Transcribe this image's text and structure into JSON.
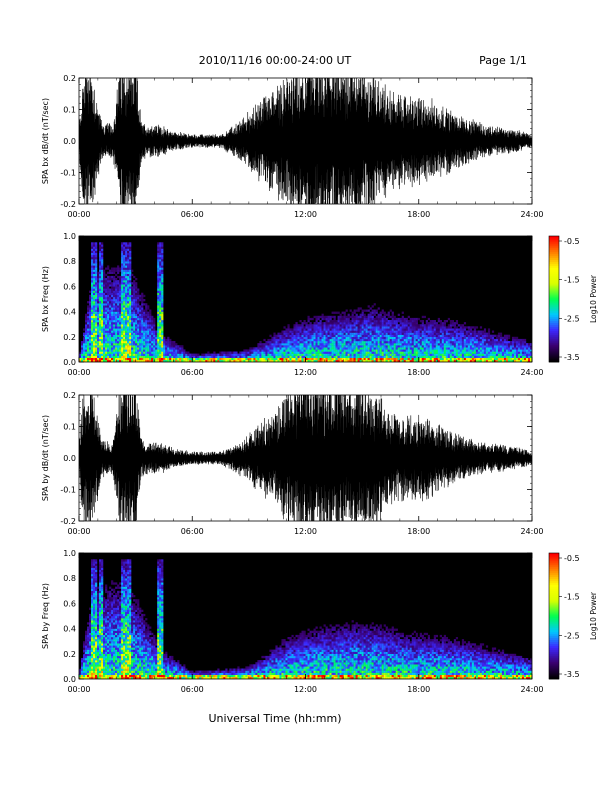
{
  "header": {
    "title": "2010/11/16  00:00-24:00 UT",
    "page": "Page 1/1"
  },
  "xaxis": {
    "label": "Universal Time (hh:mm)",
    "ticks": [
      "00:00",
      "06:00",
      "12:00",
      "18:00",
      "24:00"
    ],
    "range_hours": [
      0,
      24
    ]
  },
  "colorbar": {
    "label": "Log10 Power",
    "ticks": [
      "-0.5",
      "-1.5",
      "-2.5",
      "-3.5"
    ],
    "range": [
      -3.5,
      -0.5
    ],
    "colors": [
      "#000000",
      "#3a0070",
      "#3c28ff",
      "#00c8ff",
      "#00ff50",
      "#d8ff00",
      "#ffff00",
      "#ff8000",
      "#ff0000"
    ]
  },
  "chart_data": [
    {
      "type": "line",
      "panel": "waveform",
      "ylabel": "SPA bx dB/dt (nT/sec)",
      "ylim": [
        -0.2,
        0.2
      ],
      "yticks": [
        "0.2",
        "0.1",
        "0.0",
        "-0.1",
        "-0.2"
      ],
      "xlim": [
        0,
        24
      ],
      "envelope": {
        "hours": [
          0,
          0.3,
          0.6,
          1.2,
          1.8,
          2.2,
          3.0,
          3.3,
          3.6,
          4.2,
          5.0,
          6.0,
          7.5,
          8.5,
          9.5,
          10.5,
          11.5,
          12.5,
          13.5,
          14.5,
          15.5,
          16.5,
          17.5,
          18.5,
          19.5,
          20.5,
          21.5,
          22.5,
          23.5,
          24
        ],
        "amplitude": [
          0.05,
          0.25,
          0.25,
          0.06,
          0.05,
          0.25,
          0.25,
          0.06,
          0.05,
          0.05,
          0.03,
          0.02,
          0.02,
          0.06,
          0.12,
          0.18,
          0.22,
          0.25,
          0.25,
          0.25,
          0.22,
          0.15,
          0.14,
          0.13,
          0.1,
          0.07,
          0.05,
          0.04,
          0.03,
          0.02
        ]
      },
      "color": "#000000"
    },
    {
      "type": "heatmap",
      "panel": "spectrogram",
      "ylabel": "SPA bx Freq (Hz)",
      "ylim": [
        0,
        1.0
      ],
      "yticks": [
        "1.0",
        "0.8",
        "0.6",
        "0.4",
        "0.2",
        "0.0"
      ],
      "xlim": [
        0,
        24
      ],
      "bursts_hours": [
        0.8,
        1.2,
        2.3,
        2.6,
        4.3
      ],
      "activity": {
        "hours": [
          0,
          0.8,
          1.2,
          2.3,
          2.6,
          4.3,
          6,
          9,
          11,
          12.5,
          14.5,
          15.5,
          17.5,
          20,
          24
        ],
        "max_freq_hz": [
          0.05,
          0.95,
          0.9,
          0.95,
          0.95,
          0.3,
          0.08,
          0.12,
          0.35,
          0.45,
          0.5,
          0.55,
          0.45,
          0.4,
          0.2
        ]
      }
    },
    {
      "type": "line",
      "panel": "waveform",
      "ylabel": "SPA by dB/dt (nT/sec)",
      "ylim": [
        -0.2,
        0.2
      ],
      "yticks": [
        "0.2",
        "0.1",
        "0.0",
        "-0.1",
        "-0.2"
      ],
      "xlim": [
        0,
        24
      ],
      "envelope": {
        "hours": [
          0,
          0.3,
          0.6,
          1.2,
          1.8,
          2.2,
          3.0,
          3.3,
          3.6,
          4.2,
          5.0,
          6.0,
          7.5,
          8.5,
          9.5,
          10.5,
          11.5,
          12.5,
          13.5,
          14.5,
          15.5,
          16.5,
          17.5,
          18.5,
          19.5,
          20.5,
          21.5,
          22.5,
          23.5,
          24
        ],
        "amplitude": [
          0.05,
          0.25,
          0.25,
          0.06,
          0.05,
          0.25,
          0.25,
          0.06,
          0.05,
          0.05,
          0.03,
          0.02,
          0.02,
          0.05,
          0.1,
          0.15,
          0.25,
          0.25,
          0.25,
          0.25,
          0.22,
          0.14,
          0.13,
          0.12,
          0.09,
          0.06,
          0.05,
          0.04,
          0.03,
          0.02
        ]
      },
      "color": "#000000"
    },
    {
      "type": "heatmap",
      "panel": "spectrogram",
      "ylabel": "SPA by Freq (Hz)",
      "ylim": [
        0,
        1.0
      ],
      "yticks": [
        "1.0",
        "0.8",
        "0.6",
        "0.4",
        "0.2",
        "0.0"
      ],
      "xlim": [
        0,
        24
      ],
      "bursts_hours": [
        0.8,
        1.2,
        2.3,
        2.6,
        4.3
      ],
      "activity": {
        "hours": [
          0,
          0.8,
          1.2,
          2.3,
          2.6,
          4.3,
          6,
          9,
          11,
          12.5,
          14.5,
          15.5,
          17.5,
          20,
          24
        ],
        "max_freq_hz": [
          0.05,
          0.95,
          0.9,
          0.95,
          0.95,
          0.3,
          0.08,
          0.12,
          0.4,
          0.5,
          0.55,
          0.55,
          0.45,
          0.4,
          0.2
        ]
      }
    }
  ]
}
